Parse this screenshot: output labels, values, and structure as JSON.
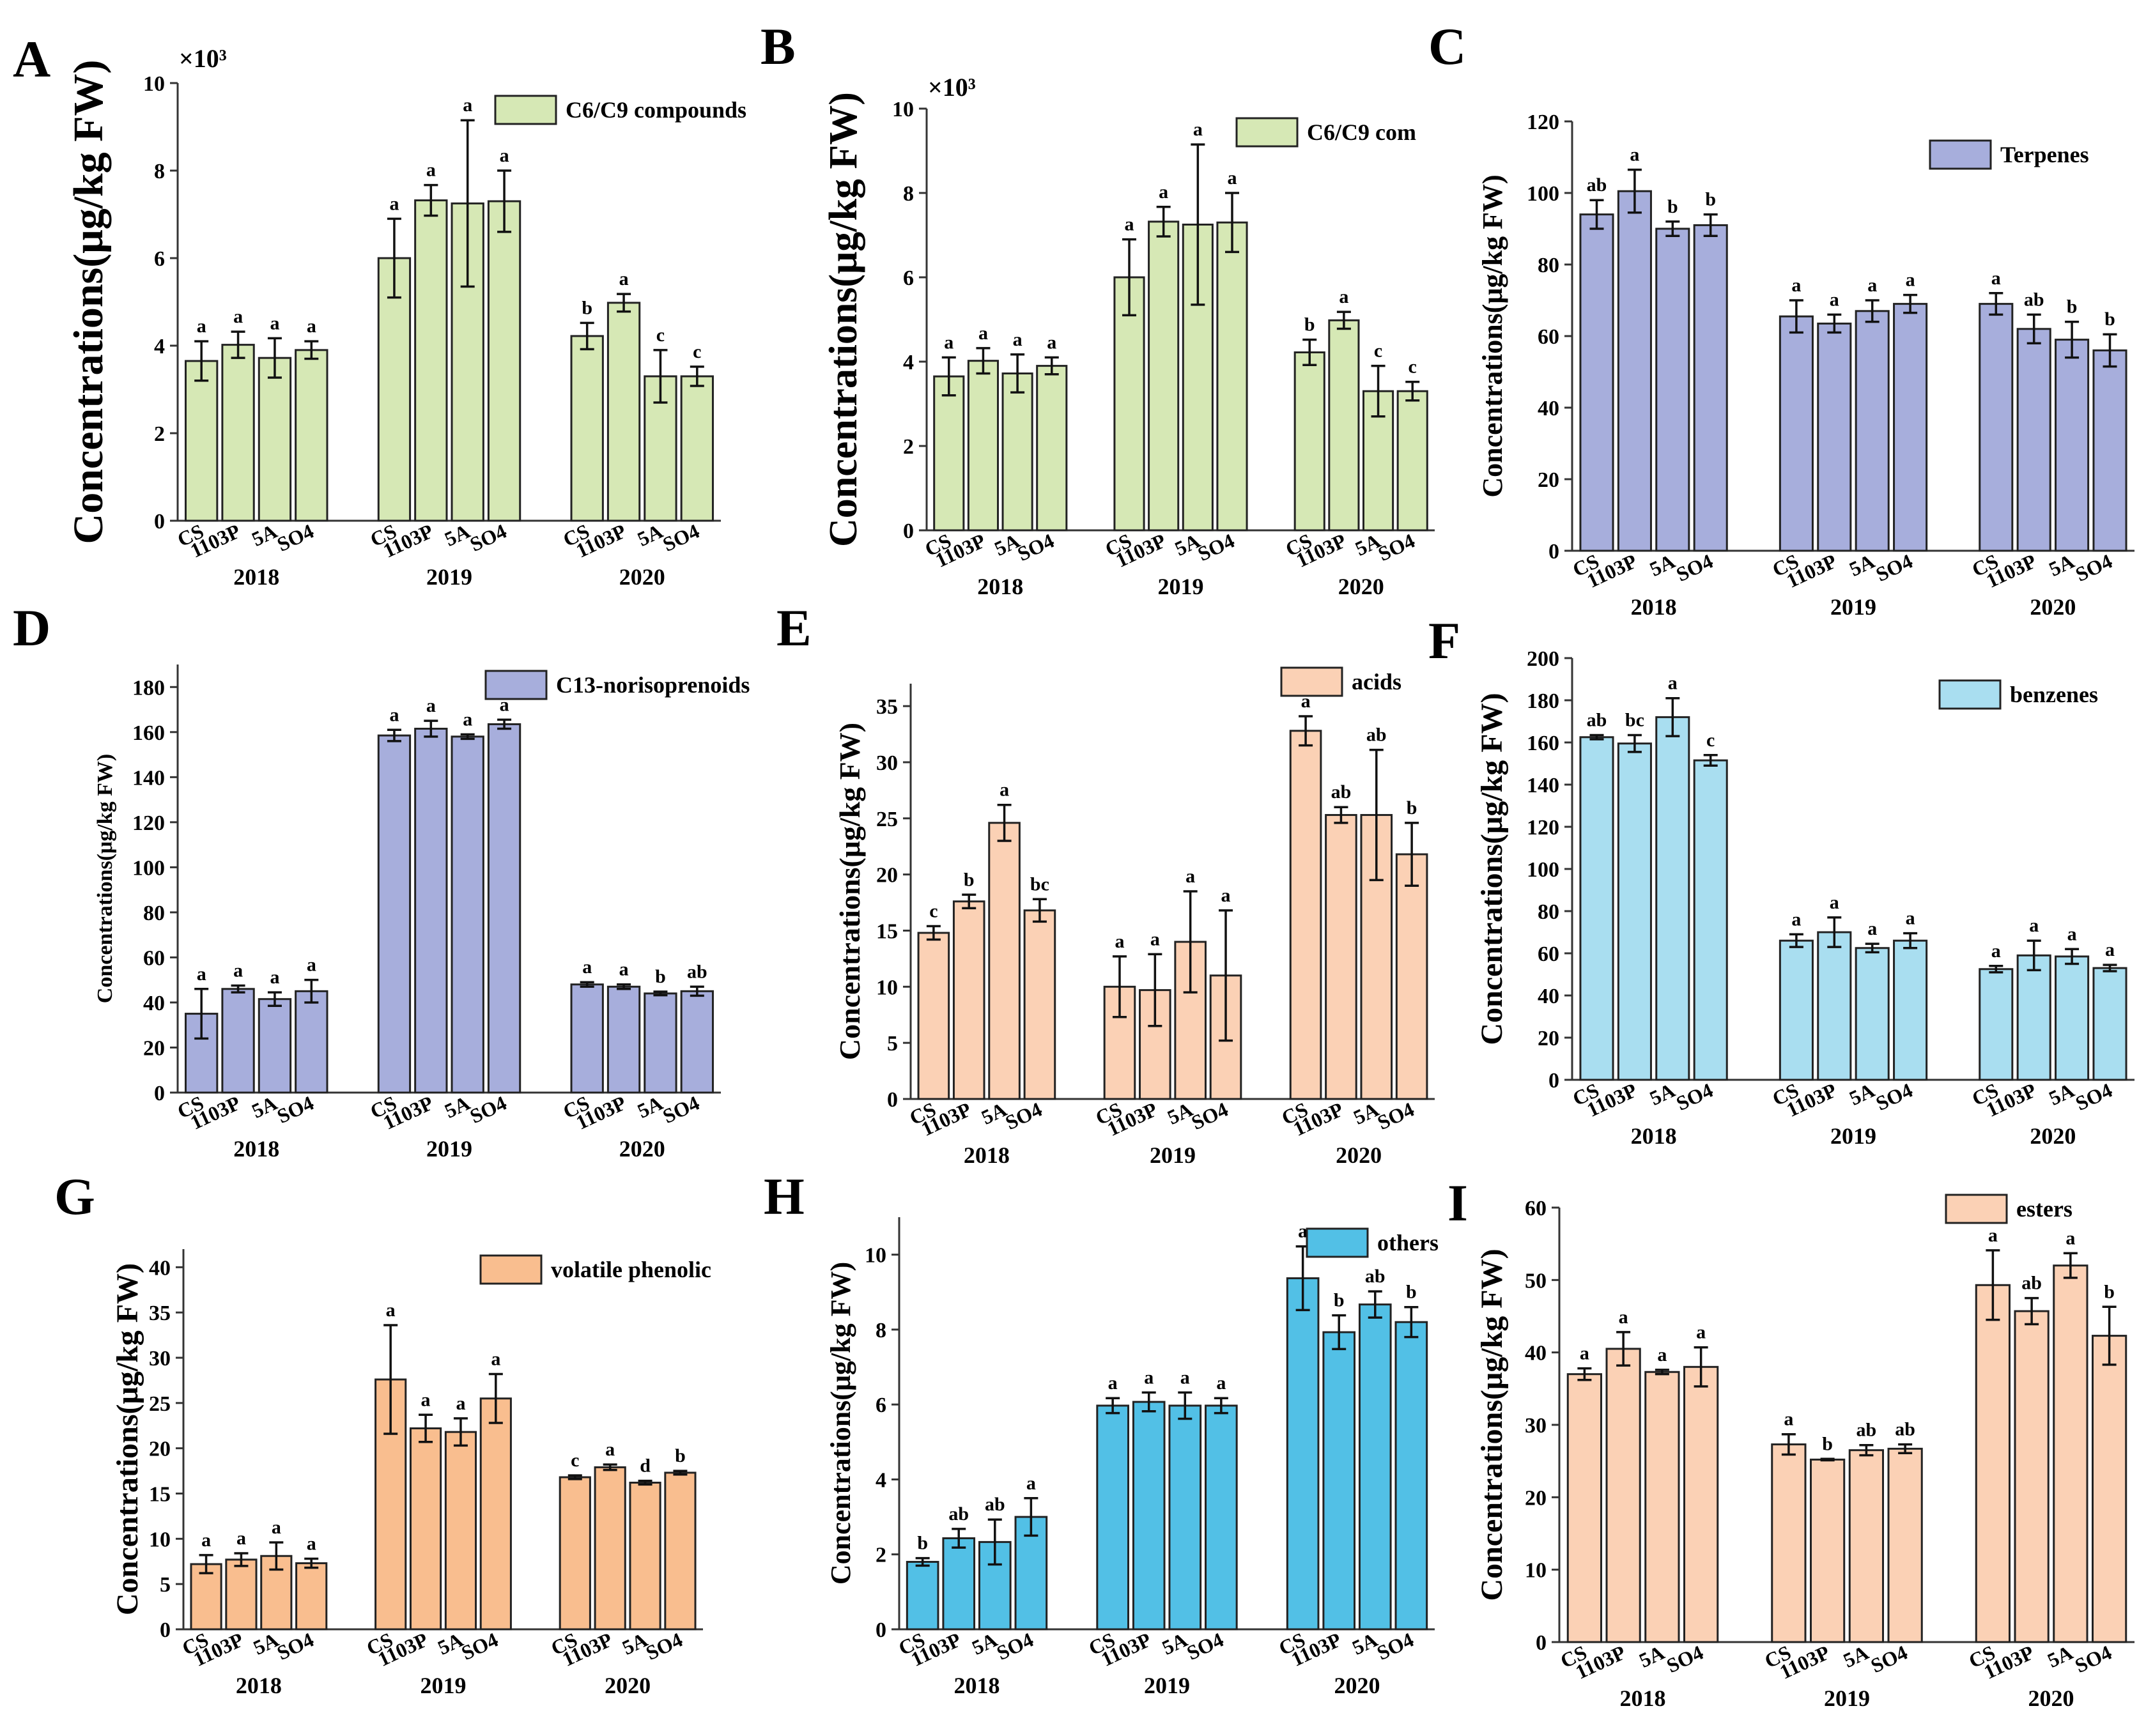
{
  "figure": {
    "categories": [
      "CS",
      "1103P",
      "5A",
      "SO4"
    ],
    "years": [
      "2018",
      "2019",
      "2020"
    ]
  },
  "chart_data": [
    {
      "panel": "A",
      "type": "bar",
      "series_name": "C6/C9 compounds",
      "ylabel": "Concentrations(μg/kg FW)",
      "multiplier": "×10³",
      "ylim": [
        0,
        10
      ],
      "yticks": [
        0,
        2,
        4,
        6,
        8,
        10
      ],
      "color": "#d6e8b5",
      "groups": [
        {
          "year": "2018",
          "values": [
            3.65,
            4.02,
            3.72,
            3.9
          ],
          "errors": [
            0.45,
            0.3,
            0.45,
            0.2
          ],
          "letters": [
            "a",
            "a",
            "a",
            "a"
          ]
        },
        {
          "year": "2019",
          "values": [
            6.0,
            7.32,
            7.25,
            7.3
          ],
          "errors": [
            0.9,
            0.35,
            1.9,
            0.7
          ],
          "letters": [
            "a",
            "a",
            "a",
            "a"
          ]
        },
        {
          "year": "2020",
          "values": [
            4.22,
            4.98,
            3.3,
            3.3
          ],
          "errors": [
            0.3,
            0.2,
            0.6,
            0.22
          ],
          "letters": [
            "b",
            "a",
            "c",
            "c"
          ]
        }
      ]
    },
    {
      "panel": "B",
      "type": "bar",
      "series_name": "C6/C9 com",
      "ylabel": "Concentrations(μg/kg FW)",
      "multiplier": "×10³",
      "ylim": [
        0,
        10
      ],
      "yticks": [
        0,
        2,
        4,
        6,
        8,
        10
      ],
      "color": "#d6e8b5",
      "groups": [
        {
          "year": "2018",
          "values": [
            3.65,
            4.02,
            3.72,
            3.9
          ],
          "errors": [
            0.45,
            0.3,
            0.45,
            0.2
          ],
          "letters": [
            "a",
            "a",
            "a",
            "a"
          ]
        },
        {
          "year": "2019",
          "values": [
            6.0,
            7.32,
            7.25,
            7.3
          ],
          "errors": [
            0.9,
            0.35,
            1.9,
            0.7
          ],
          "letters": [
            "a",
            "a",
            "a",
            "a"
          ]
        },
        {
          "year": "2020",
          "values": [
            4.22,
            4.98,
            3.3,
            3.3
          ],
          "errors": [
            0.3,
            0.2,
            0.6,
            0.22
          ],
          "letters": [
            "b",
            "a",
            "c",
            "c"
          ]
        }
      ]
    },
    {
      "panel": "C",
      "type": "bar",
      "series_name": "Terpenes",
      "ylabel": "Concentrations(μg/kg FW)",
      "multiplier": "",
      "ylim": [
        0,
        120
      ],
      "yticks": [
        0,
        20,
        40,
        60,
        80,
        100,
        120
      ],
      "color": "#a7aedc",
      "groups": [
        {
          "year": "2018",
          "values": [
            94,
            100.5,
            90,
            91
          ],
          "errors": [
            4,
            6,
            2,
            3
          ],
          "letters": [
            "ab",
            "a",
            "b",
            "b"
          ]
        },
        {
          "year": "2019",
          "values": [
            65.5,
            63.5,
            67,
            69
          ],
          "errors": [
            4.5,
            2.5,
            3,
            2.5
          ],
          "letters": [
            "a",
            "a",
            "a",
            "a"
          ]
        },
        {
          "year": "2020",
          "values": [
            69,
            62,
            59,
            56
          ],
          "errors": [
            3,
            4,
            5,
            4.5
          ],
          "letters": [
            "a",
            "ab",
            "b",
            "b"
          ]
        }
      ]
    },
    {
      "panel": "D",
      "type": "bar",
      "series_name": "C13-norisoprenoids",
      "ylabel": "Concentrations(μg/kg FW)",
      "multiplier": "",
      "ylim": [
        0,
        190
      ],
      "yticks": [
        0,
        20,
        40,
        60,
        80,
        100,
        120,
        140,
        160,
        180
      ],
      "color": "#a7aedc",
      "groups": [
        {
          "year": "2018",
          "values": [
            35,
            46,
            41.5,
            45
          ],
          "errors": [
            11,
            1.5,
            3,
            5
          ],
          "letters": [
            "a",
            "a",
            "a",
            "a"
          ]
        },
        {
          "year": "2019",
          "values": [
            158.5,
            161.5,
            158,
            163.5
          ],
          "errors": [
            2.5,
            3.5,
            1,
            2
          ],
          "letters": [
            "a",
            "a",
            "a",
            "a"
          ]
        },
        {
          "year": "2020",
          "values": [
            48,
            47,
            44,
            45
          ],
          "errors": [
            1,
            1,
            0.8,
            2
          ],
          "letters": [
            "a",
            "a",
            "b",
            "ab"
          ]
        }
      ]
    },
    {
      "panel": "E",
      "type": "bar",
      "series_name": "acids",
      "ylabel": "Concentrations(μg/kg FW)",
      "multiplier": "",
      "ylim": [
        0,
        37
      ],
      "yticks": [
        0,
        5,
        10,
        15,
        20,
        25,
        30,
        35
      ],
      "color": "#fbd1b5",
      "groups": [
        {
          "year": "2018",
          "values": [
            14.8,
            17.6,
            24.6,
            16.8
          ],
          "errors": [
            0.6,
            0.6,
            1.6,
            1.0
          ],
          "letters": [
            "c",
            "b",
            "a",
            "bc"
          ]
        },
        {
          "year": "2019",
          "values": [
            10,
            9.7,
            14,
            11
          ],
          "errors": [
            2.7,
            3.2,
            4.5,
            5.8
          ],
          "letters": [
            "a",
            "a",
            "a",
            "a"
          ]
        },
        {
          "year": "2020",
          "values": [
            32.8,
            25.3,
            25.3,
            21.8
          ],
          "errors": [
            1.3,
            0.7,
            5.8,
            2.8
          ],
          "letters": [
            "a",
            "ab",
            "ab",
            "b"
          ]
        }
      ]
    },
    {
      "panel": "F",
      "type": "bar",
      "series_name": "benzenes",
      "ylabel": "Concentrations(μg/kg FW)",
      "multiplier": "",
      "ylim": [
        0,
        200
      ],
      "yticks": [
        0,
        20,
        40,
        60,
        80,
        100,
        120,
        140,
        160,
        180,
        200
      ],
      "color": "#a9def0",
      "groups": [
        {
          "year": "2018",
          "values": [
            162.5,
            159.5,
            172,
            151.5
          ],
          "errors": [
            1,
            4,
            9,
            2.5
          ],
          "letters": [
            "ab",
            "bc",
            "a",
            "c"
          ]
        },
        {
          "year": "2019",
          "values": [
            66,
            70,
            62.5,
            66
          ],
          "errors": [
            3,
            7,
            2,
            3.5
          ],
          "letters": [
            "a",
            "a",
            "a",
            "a"
          ]
        },
        {
          "year": "2020",
          "values": [
            52.5,
            59,
            58.5,
            53
          ],
          "errors": [
            1.5,
            7,
            3.5,
            1.5
          ],
          "letters": [
            "a",
            "a",
            "a",
            "a"
          ]
        }
      ]
    },
    {
      "panel": "G",
      "type": "bar",
      "series_name": "volatile phenolic",
      "ylabel": "Concentrations(μg/kg FW)",
      "multiplier": "",
      "ylim": [
        0,
        42
      ],
      "yticks": [
        0,
        5,
        10,
        15,
        20,
        25,
        30,
        35,
        40
      ],
      "color": "#f9be8f",
      "groups": [
        {
          "year": "2018",
          "values": [
            7.2,
            7.7,
            8.1,
            7.3
          ],
          "errors": [
            1.0,
            0.7,
            1.5,
            0.5
          ],
          "letters": [
            "a",
            "a",
            "a",
            "a"
          ]
        },
        {
          "year": "2019",
          "values": [
            27.6,
            22.2,
            21.8,
            25.5
          ],
          "errors": [
            6,
            1.5,
            1.5,
            2.7
          ],
          "letters": [
            "a",
            "a",
            "a",
            "a"
          ]
        },
        {
          "year": "2020",
          "values": [
            16.8,
            17.9,
            16.2,
            17.3
          ],
          "errors": [
            0.2,
            0.3,
            0.2,
            0.2
          ],
          "letters": [
            "c",
            "a",
            "d",
            "b"
          ]
        }
      ]
    },
    {
      "panel": "H",
      "type": "bar",
      "series_name": "others",
      "ylabel": "Concentrations(μg/kg FW)",
      "multiplier": "",
      "ylim": [
        0,
        11
      ],
      "yticks": [
        0,
        2,
        4,
        6,
        8,
        10
      ],
      "color": "#52c0e6",
      "groups": [
        {
          "year": "2018",
          "values": [
            1.8,
            2.43,
            2.33,
            3.0
          ],
          "errors": [
            0.1,
            0.25,
            0.6,
            0.5
          ],
          "letters": [
            "b",
            "ab",
            "ab",
            "a"
          ]
        },
        {
          "year": "2019",
          "values": [
            5.97,
            6.07,
            5.97,
            5.97
          ],
          "errors": [
            0.2,
            0.25,
            0.35,
            0.2
          ],
          "letters": [
            "a",
            "a",
            "a",
            "a"
          ]
        },
        {
          "year": "2020",
          "values": [
            9.37,
            7.93,
            8.67,
            8.2
          ],
          "errors": [
            0.85,
            0.45,
            0.35,
            0.4
          ],
          "letters": [
            "a",
            "b",
            "ab",
            "b"
          ]
        }
      ]
    },
    {
      "panel": "I",
      "type": "bar",
      "series_name": "esters",
      "ylabel": "Concentrations(μg/kg FW)",
      "multiplier": "",
      "ylim": [
        0,
        60
      ],
      "yticks": [
        0,
        10,
        20,
        30,
        40,
        50,
        60
      ],
      "color": "#fbd1b5",
      "groups": [
        {
          "year": "2018",
          "values": [
            37,
            40.5,
            37.3,
            38
          ],
          "errors": [
            0.8,
            2.3,
            0.3,
            2.7
          ],
          "letters": [
            "a",
            "a",
            "a",
            "a"
          ]
        },
        {
          "year": "2019",
          "values": [
            27.3,
            25.2,
            26.5,
            26.7
          ],
          "errors": [
            1.4,
            0.1,
            0.7,
            0.6
          ],
          "letters": [
            "a",
            "b",
            "ab",
            "ab"
          ]
        },
        {
          "year": "2020",
          "values": [
            49.3,
            45.7,
            52,
            42.3
          ],
          "errors": [
            4.8,
            1.8,
            1.7,
            4
          ],
          "letters": [
            "a",
            "ab",
            "a",
            "b"
          ]
        }
      ]
    }
  ]
}
